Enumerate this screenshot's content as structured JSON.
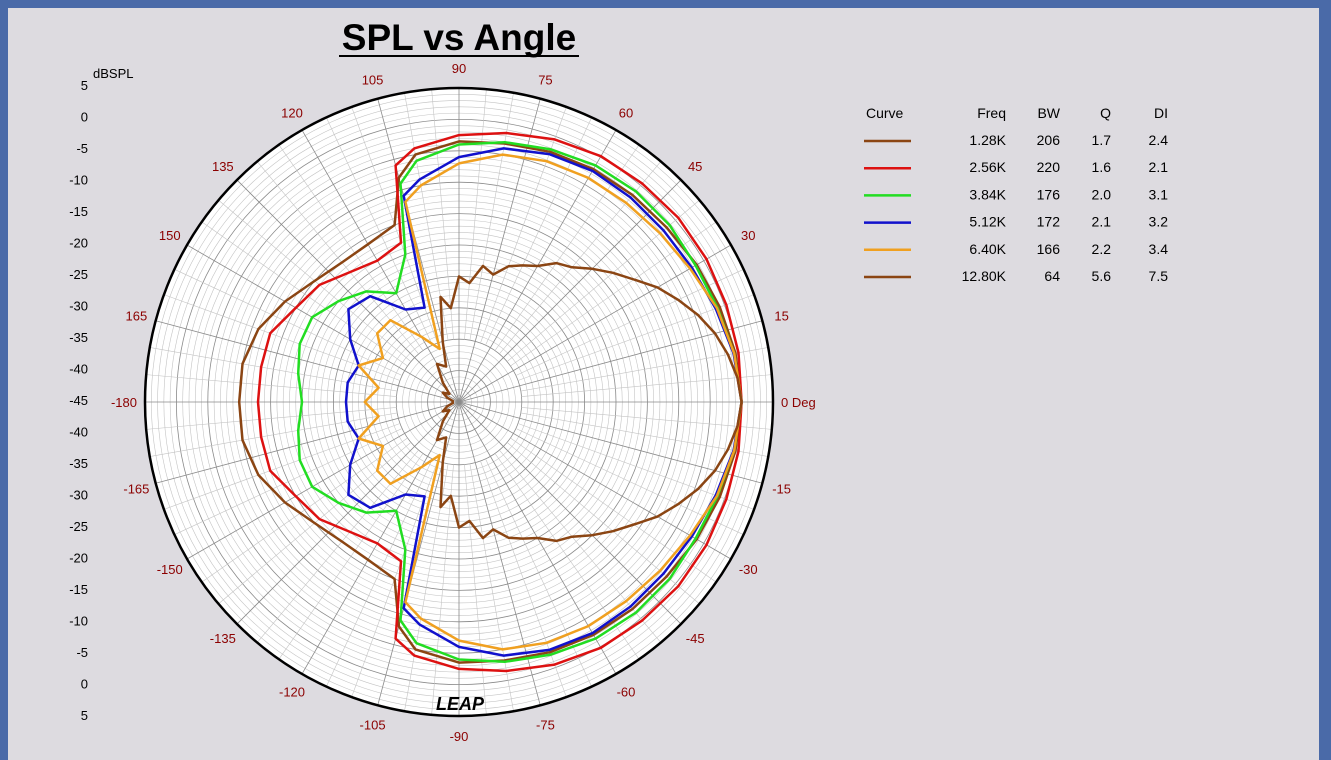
{
  "chart_data": {
    "type": "polar",
    "title": "SPL vs Angle",
    "radial_unit": "dBSPL",
    "radial_ticks_top": [
      "5",
      "0",
      "-5",
      "-10",
      "-15",
      "-20",
      "-25",
      "-30",
      "-35",
      "-40",
      "-45"
    ],
    "radial_ticks_bottom": [
      "-40",
      "-35",
      "-30",
      "-25",
      "-20",
      "-15",
      "-10",
      "-5",
      "0",
      "5"
    ],
    "rlim": [
      -45,
      5
    ],
    "angle_labels": [
      {
        "angle": 0,
        "text": "0 Deg"
      },
      {
        "angle": 15,
        "text": "15"
      },
      {
        "angle": 30,
        "text": "30"
      },
      {
        "angle": 45,
        "text": "45"
      },
      {
        "angle": 60,
        "text": "60"
      },
      {
        "angle": 75,
        "text": "75"
      },
      {
        "angle": 90,
        "text": "90"
      },
      {
        "angle": 105,
        "text": "105"
      },
      {
        "angle": 120,
        "text": "120"
      },
      {
        "angle": 135,
        "text": "135"
      },
      {
        "angle": 150,
        "text": "150"
      },
      {
        "angle": 165,
        "text": "165"
      },
      {
        "angle": 180,
        "text": "-180"
      },
      {
        "angle": -165,
        "text": "-165"
      },
      {
        "angle": -150,
        "text": "-150"
      },
      {
        "angle": -135,
        "text": "-135"
      },
      {
        "angle": -120,
        "text": "-120"
      },
      {
        "angle": -105,
        "text": "-105"
      },
      {
        "angle": -90,
        "text": "-90"
      },
      {
        "angle": -75,
        "text": "-75"
      },
      {
        "angle": -60,
        "text": "-60"
      },
      {
        "angle": -45,
        "text": "-45"
      },
      {
        "angle": -30,
        "text": "-30"
      },
      {
        "angle": -15,
        "text": "-15"
      }
    ],
    "legend": {
      "headers": [
        "Curve",
        "Freq",
        "BW",
        "Q",
        "DI"
      ],
      "placement": "right"
    },
    "series": [
      {
        "name": "1.28K",
        "freq": "1.28K",
        "bw": "206",
        "q": "1.7",
        "di": "2.4",
        "color": "#8b4513",
        "angles": [
          0,
          10,
          20,
          30,
          40,
          50,
          60,
          70,
          80,
          90,
          100,
          105,
          110,
          120,
          130,
          140,
          150,
          160,
          170,
          180
        ],
        "values": [
          0,
          -0.3,
          -0.8,
          -1.3,
          -1.8,
          -2,
          -2.2,
          -2.6,
          -3.2,
          -3.5,
          -5,
          -8,
          -15,
          -16,
          -16,
          -15,
          -13,
          -11,
          -10,
          -10
        ]
      },
      {
        "name": "2.56K",
        "freq": "2.56K",
        "bw": "220",
        "q": "1.6",
        "di": "2.1",
        "color": "#dd1111",
        "angles": [
          0,
          10,
          20,
          30,
          40,
          50,
          60,
          70,
          80,
          90,
          100,
          105,
          110,
          120,
          130,
          140,
          150,
          160,
          170,
          180
        ],
        "values": [
          0,
          0.2,
          0.3,
          0.5,
          0.6,
          0.4,
          0.2,
          -0.5,
          -1.5,
          -2.5,
          -4,
          -6,
          -18,
          -19,
          -18,
          -16,
          -15,
          -13,
          -13,
          -13
        ]
      },
      {
        "name": "3.84K",
        "freq": "3.84K",
        "bw": "176",
        "q": "2.0",
        "di": "3.1",
        "color": "#22dd22",
        "angles": [
          0,
          10,
          20,
          30,
          40,
          50,
          60,
          70,
          80,
          90,
          100,
          105,
          110,
          120,
          130,
          140,
          150,
          160,
          170,
          180
        ],
        "values": [
          0,
          -0.5,
          -1.2,
          -1.5,
          -1.2,
          -1.2,
          -1.5,
          -2.2,
          -3,
          -4,
          -6,
          -9,
          -20,
          -25,
          -22,
          -20,
          -18,
          -18,
          -19,
          -20
        ]
      },
      {
        "name": "5.12K",
        "freq": "5.12K",
        "bw": "172",
        "q": "2.1",
        "di": "3.2",
        "color": "#1111cc",
        "angles": [
          0,
          10,
          20,
          30,
          40,
          50,
          60,
          70,
          80,
          90,
          100,
          105,
          110,
          120,
          130,
          140,
          150,
          160,
          170,
          180
        ],
        "values": [
          0,
          -0.6,
          -1.5,
          -2.2,
          -2.5,
          -2.5,
          -2.5,
          -3,
          -4,
          -6,
          -9,
          -11,
          -29,
          -28,
          -23,
          -22,
          -25,
          -28,
          -27,
          -27
        ]
      },
      {
        "name": "6.40K",
        "freq": "6.40K",
        "bw": "166",
        "q": "2.2",
        "di": "3.4",
        "color": "#f0a020",
        "angles": [
          0,
          10,
          20,
          30,
          40,
          50,
          60,
          70,
          80,
          90,
          100,
          105,
          110,
          120,
          130,
          140,
          150,
          160,
          170,
          180
        ],
        "values": [
          0,
          -0.5,
          -1.3,
          -2.5,
          -3.2,
          -3.6,
          -3.8,
          -4.2,
          -5,
          -7,
          -10,
          -12,
          -36,
          -33,
          -28,
          -28,
          -31,
          -28,
          -32,
          -30
        ]
      },
      {
        "name": "12.80K",
        "freq": "12.80K",
        "bw": "64",
        "q": "5.6",
        "di": "7.5",
        "color": "#8b4513",
        "angles": [
          0,
          5,
          10,
          15,
          20,
          25,
          30,
          35,
          40,
          45,
          50,
          55,
          60,
          65,
          70,
          75,
          80,
          85,
          90,
          95,
          100,
          105,
          110,
          120,
          130,
          140,
          150,
          160,
          170,
          180
        ],
        "values": [
          0,
          -0.5,
          -1.5,
          -2.8,
          -4.5,
          -6.5,
          -8.5,
          -11,
          -13,
          -15,
          -17,
          -18,
          -20,
          -21,
          -22,
          -24,
          -23,
          -26,
          -25,
          -30,
          -28,
          -35,
          -39,
          -38,
          -41,
          -43,
          -42,
          -43,
          -44,
          -44
        ]
      }
    ]
  },
  "logo_text": "LEAP"
}
